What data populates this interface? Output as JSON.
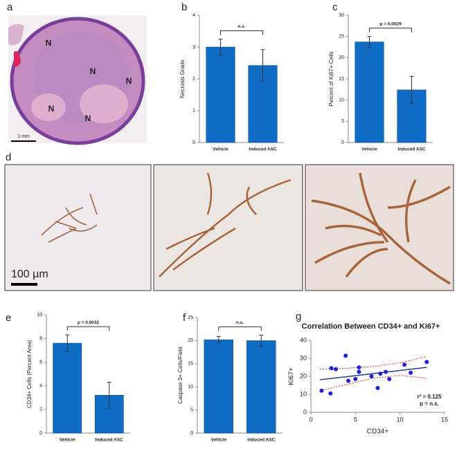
{
  "panel_labels": [
    "a",
    "b",
    "c",
    "d",
    "e",
    "f",
    "g"
  ],
  "image_a": {
    "labels": [
      "N",
      "N",
      "N",
      "N",
      "N"
    ],
    "scale_bar": "1 mm"
  },
  "image_d": {
    "scale_bar": "100 µm"
  },
  "chart_data": [
    {
      "type": "bar",
      "y_label": "Necrosis Grade",
      "categories": [
        "Vehicle",
        "Induced ASC"
      ],
      "values": [
        3.0,
        2.42
      ],
      "errors": [
        0.25,
        0.5
      ],
      "color": "#0f6cc4",
      "ylim": [
        0,
        4
      ],
      "yticks": [
        0,
        1,
        2,
        3,
        4
      ],
      "annotation": "n.s."
    },
    {
      "type": "bar",
      "y_label": "Percent of Ki67+ Cells",
      "categories": [
        "Vehicle",
        "Induced ASC"
      ],
      "values": [
        23.7,
        12.4
      ],
      "errors": [
        1.3,
        3.2
      ],
      "color": "#0f6cc4",
      "ylim": [
        0,
        30
      ],
      "yticks": [
        0,
        5,
        10,
        15,
        20,
        25,
        30
      ],
      "annotation": "p = 0.0029"
    },
    {
      "type": "bar",
      "y_label": "CD34+ Cells (Percent Area)",
      "categories": [
        "Vehicle",
        "Induced ASC"
      ],
      "values": [
        7.6,
        3.2
      ],
      "errors": [
        0.7,
        1.1
      ],
      "color": "#0f6cc4",
      "ylim": [
        0,
        10
      ],
      "yticks": [
        0,
        2,
        4,
        6,
        8,
        10
      ],
      "annotation": "p = 0.0032"
    },
    {
      "type": "bar",
      "y_label": "Caspase 3+ Cells/Field",
      "categories": [
        "Vehicle",
        "Induced ASC"
      ],
      "values": [
        20.2,
        20.0
      ],
      "errors": [
        0.7,
        1.2
      ],
      "color": "#0f6cc4",
      "ylim": [
        0,
        25
      ],
      "yticks": [
        0,
        5,
        10,
        15,
        20,
        25
      ],
      "annotation": "n.s."
    },
    {
      "type": "scatter",
      "title": "Correlation Between CD34+ and Ki67+",
      "x_label": "CD34+",
      "y_label": "Ki67+",
      "x": [
        1.2,
        2.2,
        2.3,
        2.8,
        3.9,
        4.2,
        5.0,
        5.4,
        5.4,
        6.8,
        7.5,
        7.8,
        8.4,
        8.8,
        10.5,
        11.2,
        13.0
      ],
      "y": [
        12,
        10.5,
        24.5,
        24,
        31.5,
        17.5,
        18.5,
        25,
        22.5,
        20,
        13.5,
        21.5,
        22.5,
        18.5,
        26.5,
        22,
        28
      ],
      "color": "#1f1fe0",
      "fit": {
        "x": [
          1,
          13
        ],
        "y": [
          18.1,
          25
        ],
        "color": "#1c3a9a"
      },
      "ci_upper": {
        "x": [
          1,
          4,
          7,
          10,
          13
        ],
        "y": [
          24,
          24.5,
          25.5,
          27.5,
          31
        ],
        "color": "#cc2a2a"
      },
      "ci_lower": {
        "x": [
          1,
          4,
          7,
          10,
          13
        ],
        "y": [
          12,
          15.5,
          19,
          20.5,
          19
        ],
        "color": "#cc2a2a"
      },
      "xlim": [
        0,
        15
      ],
      "xticks": [
        0,
        5,
        10,
        15
      ],
      "ylim": [
        0,
        40
      ],
      "yticks": [
        0,
        10,
        20,
        30,
        40
      ],
      "annotations": [
        "r² = 0.125",
        "p = n.s."
      ]
    }
  ]
}
